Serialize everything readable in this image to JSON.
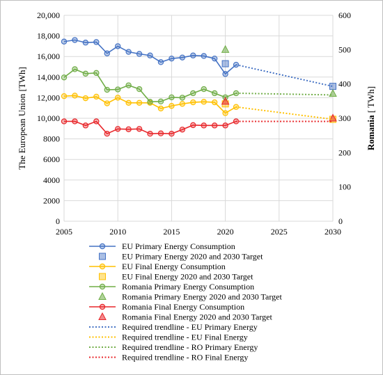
{
  "chart_data": {
    "type": "line",
    "x_axis": {
      "min": 2005,
      "max": 2030,
      "ticks": [
        2005,
        2010,
        2015,
        2020,
        2025,
        2030
      ],
      "tick_labels": [
        "2005",
        "2010",
        "2015",
        "2020",
        "2025",
        "2030"
      ]
    },
    "y_left": {
      "label": "The European Union [TWh]",
      "min": 0,
      "max": 20000,
      "ticks": [
        0,
        2000,
        4000,
        6000,
        8000,
        10000,
        12000,
        14000,
        16000,
        18000,
        20000
      ],
      "tick_labels": [
        "0",
        "2000",
        "4000",
        "6000",
        "8000",
        "10,000",
        "12,000",
        "14,000",
        "16,000",
        "18,000",
        "20,000"
      ]
    },
    "y_right": {
      "label_bold": "Romania",
      "label_rest": " [ TWh]",
      "min": 0,
      "max": 600,
      "ticks": [
        0,
        100,
        200,
        300,
        400,
        500,
        600
      ],
      "tick_labels": [
        "0",
        "100",
        "200",
        "300",
        "400",
        "500",
        "600"
      ]
    },
    "grid": true,
    "legend_position": "bottom",
    "series": [
      {
        "name": "EU Primary Energy Consumption",
        "kind": "line",
        "axis": "left",
        "color": "#4472C4",
        "x": [
          2005,
          2006,
          2007,
          2008,
          2009,
          2010,
          2011,
          2012,
          2013,
          2014,
          2015,
          2016,
          2017,
          2018,
          2019,
          2020,
          2021
        ],
        "y": [
          17450,
          17600,
          17350,
          17400,
          16300,
          17000,
          16450,
          16250,
          16100,
          15450,
          15800,
          15900,
          16100,
          16050,
          15800,
          14300,
          15200
        ]
      },
      {
        "name": "EU Primary Energy 2020 and 2030 Target",
        "kind": "marker",
        "marker": "square",
        "axis": "left",
        "color": "#4472C4",
        "x": [
          2020,
          2030
        ],
        "y": [
          15300,
          13100
        ]
      },
      {
        "name": "EU Final Energy Consumption",
        "kind": "line",
        "axis": "left",
        "color": "#FFC000",
        "x": [
          2005,
          2006,
          2007,
          2008,
          2009,
          2010,
          2011,
          2012,
          2013,
          2014,
          2015,
          2016,
          2017,
          2018,
          2019,
          2020,
          2021
        ],
        "y": [
          12150,
          12200,
          11950,
          12100,
          11450,
          12000,
          11500,
          11500,
          11500,
          10950,
          11200,
          11400,
          11550,
          11600,
          11550,
          10500,
          11100
        ]
      },
      {
        "name": "EU Final Energy 2020 and 2030 Target",
        "kind": "marker",
        "marker": "square",
        "axis": "left",
        "color": "#FFC000",
        "x": [
          2020,
          2030
        ],
        "y": [
          11400,
          9900
        ]
      },
      {
        "name": "Romania Primary Energy Consumption",
        "kind": "line",
        "axis": "right",
        "color": "#70AD47",
        "x": [
          2005,
          2006,
          2007,
          2008,
          2009,
          2010,
          2011,
          2012,
          2013,
          2014,
          2015,
          2016,
          2017,
          2018,
          2019,
          2020,
          2021
        ],
        "y": [
          419,
          443,
          430,
          432,
          383,
          384,
          396,
          385,
          348,
          349,
          361,
          360,
          373,
          385,
          373,
          361,
          373
        ]
      },
      {
        "name": "Romania Primary Energy 2020 and 2030 Target",
        "kind": "marker",
        "marker": "triangle",
        "axis": "right",
        "color": "#70AD47",
        "x": [
          2020,
          2030
        ],
        "y": [
          500,
          372
        ]
      },
      {
        "name": "Romania Final Energy Consumption",
        "kind": "line",
        "axis": "right",
        "color": "#E8272B",
        "x": [
          2005,
          2006,
          2007,
          2008,
          2009,
          2010,
          2011,
          2012,
          2013,
          2014,
          2015,
          2016,
          2017,
          2018,
          2019,
          2020,
          2021
        ],
        "y": [
          291,
          291,
          279,
          291,
          255,
          269,
          268,
          269,
          255,
          256,
          255,
          267,
          280,
          279,
          279,
          279,
          291
        ]
      },
      {
        "name": "Romania Final Energy 2020 and 2030 Target",
        "kind": "marker",
        "marker": "triangle",
        "axis": "right",
        "color": "#E8272B",
        "x": [
          2020,
          2030
        ],
        "y": [
          349,
          300
        ]
      },
      {
        "name": "Required trendline - EU Primary Energy",
        "kind": "dotted",
        "axis": "left",
        "color": "#4472C4",
        "x": [
          2021,
          2030
        ],
        "y": [
          15200,
          13100
        ]
      },
      {
        "name": "Required trendline - EU Final Energy",
        "kind": "dotted",
        "axis": "left",
        "color": "#FFC000",
        "x": [
          2021,
          2030
        ],
        "y": [
          11100,
          9900
        ]
      },
      {
        "name": "Required trendline - RO Primary Energy",
        "kind": "dotted",
        "axis": "right",
        "color": "#70AD47",
        "x": [
          2021,
          2030
        ],
        "y": [
          373,
          368
        ]
      },
      {
        "name": "Required trendline - RO Final Energy",
        "kind": "dotted",
        "axis": "right",
        "color": "#E8272B",
        "x": [
          2021,
          2030
        ],
        "y": [
          291,
          291
        ]
      }
    ]
  }
}
